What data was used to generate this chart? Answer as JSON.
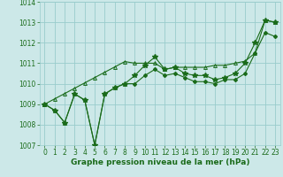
{
  "title": "",
  "xlabel": "Graphe pression niveau de la mer (hPa)",
  "ylabel": "",
  "background_color": "#cce8e8",
  "grid_color": "#99cccc",
  "line_color": "#1a6b1a",
  "x": [
    0,
    1,
    2,
    3,
    4,
    5,
    6,
    7,
    8,
    9,
    10,
    11,
    12,
    13,
    14,
    15,
    16,
    17,
    18,
    19,
    20,
    21,
    22,
    23
  ],
  "line1": [
    1009.0,
    1008.7,
    1008.1,
    1009.5,
    1009.2,
    1007.0,
    1009.5,
    1009.8,
    1010.0,
    1010.4,
    1010.9,
    1011.3,
    1010.7,
    1010.8,
    1010.5,
    1010.4,
    1010.4,
    1010.2,
    1010.3,
    1010.5,
    1011.0,
    1012.0,
    1013.1,
    1013.0
  ],
  "line2": [
    1009.0,
    1008.7,
    1008.1,
    1009.5,
    1009.2,
    1007.0,
    1009.5,
    1009.8,
    1010.0,
    1010.0,
    1010.4,
    1010.7,
    1010.4,
    1010.5,
    1010.3,
    1010.1,
    1010.1,
    1010.0,
    1010.2,
    1010.2,
    1010.5,
    1011.5,
    1012.5,
    1012.3
  ],
  "line3": [
    1009.0,
    1009.26,
    1009.52,
    1009.78,
    1010.04,
    1010.3,
    1010.56,
    1010.82,
    1011.08,
    1011.0,
    1011.0,
    1011.0,
    1010.7,
    1010.8,
    1010.8,
    1010.8,
    1010.8,
    1010.9,
    1010.9,
    1011.0,
    1011.1,
    1011.5,
    1013.1,
    1013.0
  ],
  "ylim": [
    1007.0,
    1014.0
  ],
  "xlim": [
    -0.5,
    23.5
  ],
  "yticks": [
    1007,
    1008,
    1009,
    1010,
    1011,
    1012,
    1013,
    1014
  ],
  "xticks": [
    0,
    1,
    2,
    3,
    4,
    5,
    6,
    7,
    8,
    9,
    10,
    11,
    12,
    13,
    14,
    15,
    16,
    17,
    18,
    19,
    20,
    21,
    22,
    23
  ],
  "tick_fontsize": 5.5,
  "xlabel_fontsize": 6.5
}
